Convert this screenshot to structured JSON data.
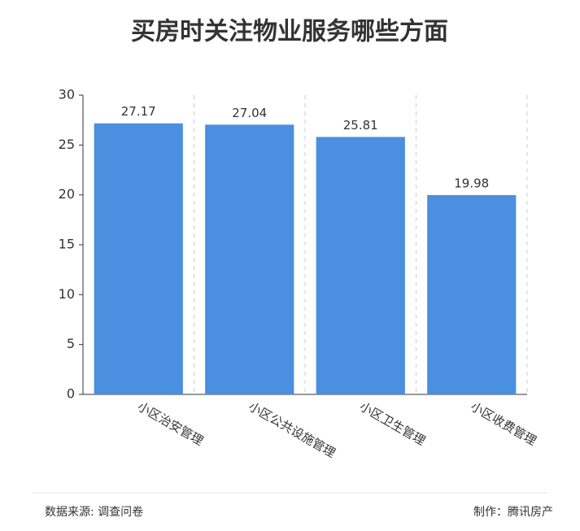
{
  "chart_data": {
    "type": "bar",
    "title": "买房时关注物业服务哪些方面",
    "categories": [
      "小区治安管理",
      "小区公共设施管理",
      "小区卫生管理",
      "小区收费管理"
    ],
    "values": [
      27.17,
      27.04,
      25.81,
      19.98
    ],
    "color": "#4a8fe0",
    "ylim": [
      0,
      30
    ],
    "yticks": [
      0,
      5,
      10,
      15,
      20,
      25,
      30
    ],
    "source": "数据来源: 调查问卷",
    "credit": "制作：腾讯房产"
  }
}
